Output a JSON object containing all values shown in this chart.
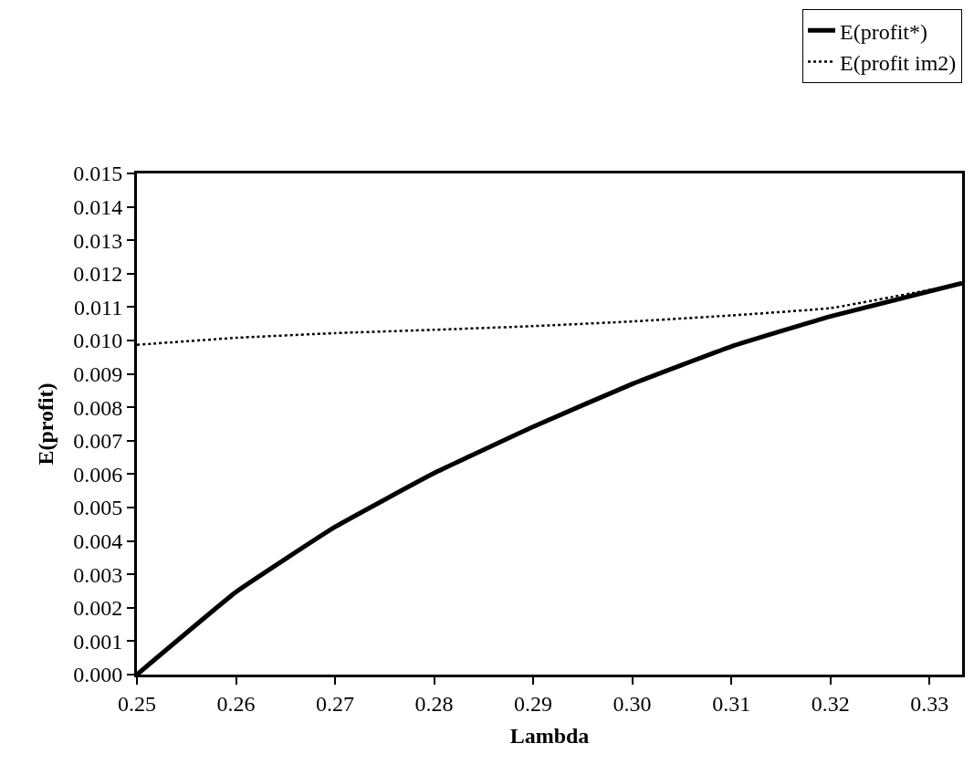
{
  "chart_data": {
    "type": "line",
    "xlabel": "Lambda",
    "ylabel": "E(profit)",
    "xlim": [
      0.25,
      0.3333
    ],
    "xticks": [
      {
        "value": 0.25,
        "label": "0.25"
      },
      {
        "value": 0.26,
        "label": "0.26"
      },
      {
        "value": 0.27,
        "label": "0.27"
      },
      {
        "value": 0.28,
        "label": "0.28"
      },
      {
        "value": 0.29,
        "label": "0.29"
      },
      {
        "value": 0.3,
        "label": "0.30"
      },
      {
        "value": 0.31,
        "label": "0.31"
      },
      {
        "value": 0.32,
        "label": "0.32"
      },
      {
        "value": 0.33,
        "label": "0.33"
      }
    ],
    "ylim": [
      0,
      0.015
    ],
    "yticks": [
      {
        "value": 0,
        "label": "0.000"
      },
      {
        "value": 0.001,
        "label": "0.001"
      },
      {
        "value": 0.002,
        "label": "0.002"
      },
      {
        "value": 0.003,
        "label": "0.003"
      },
      {
        "value": 0.004,
        "label": "0.004"
      },
      {
        "value": 0.005,
        "label": "0.005"
      },
      {
        "value": 0.006,
        "label": "0.006"
      },
      {
        "value": 0.007,
        "label": "0.007"
      },
      {
        "value": 0.008,
        "label": "0.008"
      },
      {
        "value": 0.009,
        "label": "0.009"
      },
      {
        "value": 0.01,
        "label": "0.010"
      },
      {
        "value": 0.011,
        "label": "0.011"
      },
      {
        "value": 0.012,
        "label": "0.012"
      },
      {
        "value": 0.013,
        "label": "0.013"
      },
      {
        "value": 0.014,
        "label": "0.014"
      },
      {
        "value": 0.015,
        "label": "0.015"
      }
    ],
    "x": [
      0.25,
      0.26,
      0.27,
      0.28,
      0.29,
      0.3,
      0.31,
      0.32,
      0.3333
    ],
    "legend": "top right",
    "series": [
      {
        "name": "E(profit*)",
        "color": "#000000",
        "line_style": "solid",
        "values": [
          0.0,
          0.00247,
          0.00442,
          0.00603,
          0.00742,
          0.0087,
          0.00982,
          0.01072,
          0.01172
        ]
      },
      {
        "name": "E(profit im2)",
        "color": "#000000",
        "line_style": "dotted",
        "values": [
          0.00987,
          0.01008,
          0.01022,
          0.01032,
          0.01043,
          0.01057,
          0.01075,
          0.01097,
          0.0117
        ]
      }
    ]
  }
}
